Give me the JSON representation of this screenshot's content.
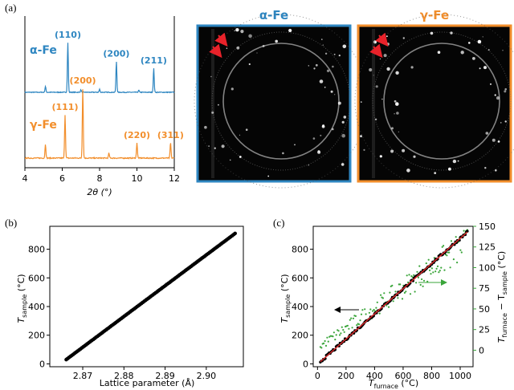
{
  "panels": {
    "a": "(a)",
    "b": "(b)",
    "c": "(c)"
  },
  "colors": {
    "alpha": "#2e86c1",
    "gamma": "#f28e2b",
    "green": "#3aa53a",
    "red": "#d62728",
    "arrow_red": "#e8222a"
  },
  "images": [
    {
      "label": "α-Fe",
      "phase": "alpha"
    },
    {
      "label": "γ-Fe",
      "phase": "gamma"
    }
  ],
  "chart_data": [
    {
      "type": "line",
      "panel": "a",
      "xlabel": "2θ (°)",
      "xlim": [
        4,
        12
      ],
      "xticks": [
        "4",
        "6",
        "8",
        "10",
        "12"
      ],
      "series": [
        {
          "name": "α-Fe",
          "peaks": [
            {
              "x": 5.1,
              "h": 0.12
            },
            {
              "x": 6.3,
              "h": 1.0,
              "label": "(110)"
            },
            {
              "x": 7.0,
              "h": 0.05
            },
            {
              "x": 8.0,
              "h": 0.06
            },
            {
              "x": 8.9,
              "h": 0.62,
              "label": "(200)"
            },
            {
              "x": 10.1,
              "h": 0.04
            },
            {
              "x": 10.9,
              "h": 0.48,
              "label": "(211)"
            }
          ]
        },
        {
          "name": "γ-Fe",
          "peaks": [
            {
              "x": 5.1,
              "h": 0.2
            },
            {
              "x": 6.15,
              "h": 0.62,
              "label": "(111)"
            },
            {
              "x": 7.1,
              "h": 1.0,
              "label": "(200)"
            },
            {
              "x": 8.5,
              "h": 0.07
            },
            {
              "x": 10.0,
              "h": 0.22,
              "label": "(220)"
            },
            {
              "x": 11.8,
              "h": 0.22,
              "label": "(311)"
            }
          ]
        }
      ]
    },
    {
      "type": "scatter",
      "panel": "b",
      "xlabel": "Lattice parameter (Å)",
      "ylabel_main": "T",
      "ylabel_sub": "sample",
      "ylabel_unit": " (°C)",
      "xlim": [
        2.862,
        2.909
      ],
      "ylim": [
        -20,
        960
      ],
      "xticks": [
        2.87,
        2.88,
        2.89,
        2.9
      ],
      "xtick_labels": [
        "2.87",
        "2.88",
        "2.89",
        "2.90"
      ],
      "yticks": [
        0,
        200,
        400,
        600,
        800
      ],
      "fit": {
        "x0": 2.866,
        "y0": 30,
        "x1": 2.907,
        "y1": 910
      },
      "n_points": 120
    },
    {
      "type": "scatter",
      "panel": "c",
      "xlabel_main": "T",
      "xlabel_sub": "furnace",
      "xlabel_unit": " (°C)",
      "ylabel_main": "T",
      "ylabel_sub": "sample",
      "ylabel_unit": " (°C)",
      "y2label": "T_furnace − T_sample (°C)",
      "y2label_main": "T",
      "y2label_sub1": "furnace",
      "y2label_mid": " − T",
      "y2label_sub2": "sample",
      "y2label_unit": " (°C)",
      "xlim": [
        -30,
        1090
      ],
      "ylim": [
        -20,
        960
      ],
      "y2lim": [
        -20,
        150
      ],
      "xticks": [
        0,
        200,
        400,
        600,
        800,
        1000
      ],
      "yticks": [
        0,
        200,
        400,
        600,
        800
      ],
      "y2ticks": [
        0,
        25,
        50,
        75,
        100,
        125,
        150
      ],
      "main_series": {
        "x0": 20,
        "y0": 15,
        "x1": 1050,
        "y1": 920
      },
      "diff_series": {
        "x0": 20,
        "y0": 5,
        "x1": 1050,
        "y1": 130
      }
    }
  ]
}
